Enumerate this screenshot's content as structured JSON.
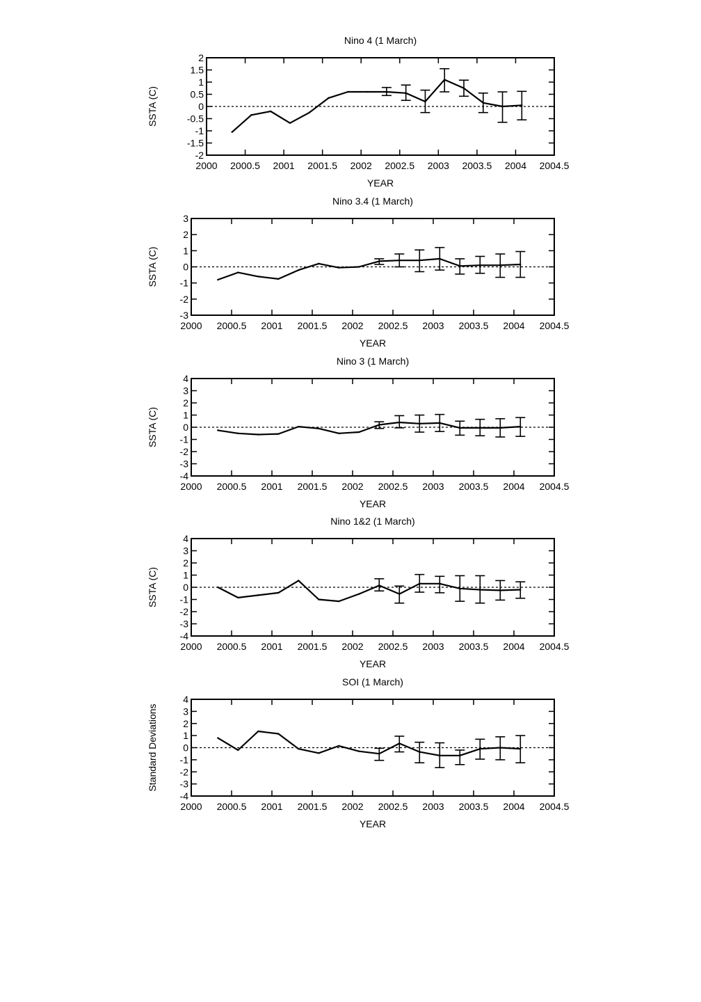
{
  "chart_data": [
    {
      "type": "line",
      "title": "Nino 4 (1 March)",
      "xlabel": "YEAR",
      "ylabel": "SSTA (C)",
      "xlim": [
        2000,
        2004.5
      ],
      "ylim": [
        -2,
        2
      ],
      "xticks": [
        "2000",
        "2000.5",
        "2001",
        "2001.5",
        "2002",
        "2002.5",
        "2003",
        "2003.5",
        "2004",
        "2004.5"
      ],
      "yticks": [
        "2",
        "1.5",
        "1",
        "0.5",
        "0",
        "-0.5",
        "-1",
        "-1.5",
        "-2"
      ],
      "grid": false,
      "zero_line": "dotted",
      "x": [
        2000.33,
        2000.58,
        2000.83,
        2001.08,
        2001.33,
        2001.58,
        2001.83,
        2002.08,
        2002.33,
        2002.58,
        2002.83,
        2003.08,
        2003.33,
        2003.58,
        2003.83,
        2004.08
      ],
      "values": [
        -1.05,
        -0.35,
        -0.2,
        -0.68,
        -0.25,
        0.35,
        0.6,
        0.6,
        0.6,
        0.55,
        0.2,
        1.1,
        0.75,
        0.15,
        0.0,
        0.05
      ],
      "error_bars": [
        {
          "x": 2002.33,
          "low": 0.45,
          "high": 0.78
        },
        {
          "x": 2002.58,
          "low": 0.25,
          "high": 0.88
        },
        {
          "x": 2002.83,
          "low": -0.25,
          "high": 0.67
        },
        {
          "x": 2003.08,
          "low": 0.6,
          "high": 1.55
        },
        {
          "x": 2003.33,
          "low": 0.42,
          "high": 1.08
        },
        {
          "x": 2003.58,
          "low": -0.25,
          "high": 0.55
        },
        {
          "x": 2003.83,
          "low": -0.65,
          "high": 0.6
        },
        {
          "x": 2004.08,
          "low": -0.55,
          "high": 0.62
        }
      ]
    },
    {
      "type": "line",
      "title": "Nino 3.4 (1 March)",
      "xlabel": "YEAR",
      "ylabel": "SSTA (C)",
      "xlim": [
        2000,
        2004.5
      ],
      "ylim": [
        -3,
        3
      ],
      "xticks": [
        "2000",
        "2000.5",
        "2001",
        "2001.5",
        "2002",
        "2002.5",
        "2003",
        "2003.5",
        "2004",
        "2004.5"
      ],
      "yticks": [
        "3",
        "2",
        "1",
        "0",
        "-1",
        "-2",
        "-3"
      ],
      "grid": false,
      "zero_line": "dotted",
      "x": [
        2000.33,
        2000.58,
        2000.83,
        2001.08,
        2001.33,
        2001.58,
        2001.83,
        2002.08,
        2002.33,
        2002.58,
        2002.83,
        2003.08,
        2003.33,
        2003.58,
        2003.83,
        2004.08
      ],
      "values": [
        -0.8,
        -0.35,
        -0.6,
        -0.75,
        -0.2,
        0.2,
        -0.05,
        0.0,
        0.35,
        0.4,
        0.4,
        0.5,
        0.05,
        0.1,
        0.1,
        0.15
      ],
      "error_bars": [
        {
          "x": 2002.33,
          "low": 0.15,
          "high": 0.5
        },
        {
          "x": 2002.58,
          "low": 0.0,
          "high": 0.8
        },
        {
          "x": 2002.83,
          "low": -0.3,
          "high": 1.05
        },
        {
          "x": 2003.08,
          "low": -0.2,
          "high": 1.2
        },
        {
          "x": 2003.33,
          "low": -0.45,
          "high": 0.5
        },
        {
          "x": 2003.58,
          "low": -0.4,
          "high": 0.65
        },
        {
          "x": 2003.83,
          "low": -0.65,
          "high": 0.8
        },
        {
          "x": 2004.08,
          "low": -0.65,
          "high": 0.95
        }
      ]
    },
    {
      "type": "line",
      "title": "Nino 3 (1 March)",
      "xlabel": "YEAR",
      "ylabel": "SSTA (C)",
      "xlim": [
        2000,
        2004.5
      ],
      "ylim": [
        -4,
        4
      ],
      "xticks": [
        "2000",
        "2000.5",
        "2001",
        "2001.5",
        "2002",
        "2002.5",
        "2003",
        "2003.5",
        "2004",
        "2004.5"
      ],
      "yticks": [
        "4",
        "3",
        "2",
        "1",
        "0",
        "-1",
        "-2",
        "-3",
        "-4"
      ],
      "grid": false,
      "zero_line": "dotted",
      "x": [
        2000.33,
        2000.58,
        2000.83,
        2001.08,
        2001.33,
        2001.58,
        2001.83,
        2002.08,
        2002.33,
        2002.58,
        2002.83,
        2003.08,
        2003.33,
        2003.58,
        2003.83,
        2004.08
      ],
      "values": [
        -0.25,
        -0.5,
        -0.6,
        -0.55,
        0.05,
        -0.1,
        -0.5,
        -0.4,
        0.2,
        0.4,
        0.3,
        0.35,
        -0.05,
        -0.05,
        -0.05,
        0.05
      ],
      "error_bars": [
        {
          "x": 2002.33,
          "low": -0.1,
          "high": 0.45
        },
        {
          "x": 2002.58,
          "low": -0.05,
          "high": 0.95
        },
        {
          "x": 2002.83,
          "low": -0.4,
          "high": 1.0
        },
        {
          "x": 2003.08,
          "low": -0.35,
          "high": 1.05
        },
        {
          "x": 2003.33,
          "low": -0.65,
          "high": 0.5
        },
        {
          "x": 2003.58,
          "low": -0.7,
          "high": 0.65
        },
        {
          "x": 2003.83,
          "low": -0.8,
          "high": 0.7
        },
        {
          "x": 2004.08,
          "low": -0.75,
          "high": 0.8
        }
      ]
    },
    {
      "type": "line",
      "title": "Nino 1&2 (1 March)",
      "xlabel": "YEAR",
      "ylabel": "SSTA (C)",
      "xlim": [
        2000,
        2004.5
      ],
      "ylim": [
        -4,
        4
      ],
      "xticks": [
        "2000",
        "2000.5",
        "2001",
        "2001.5",
        "2002",
        "2002.5",
        "2003",
        "2003.5",
        "2004",
        "2004.5"
      ],
      "yticks": [
        "4",
        "3",
        "2",
        "1",
        "0",
        "-1",
        "-2",
        "-3",
        "-4"
      ],
      "grid": false,
      "zero_line": "dotted",
      "x": [
        2000.33,
        2000.58,
        2000.83,
        2001.08,
        2001.33,
        2001.58,
        2001.83,
        2002.08,
        2002.33,
        2002.58,
        2002.83,
        2003.08,
        2003.33,
        2003.58,
        2003.83,
        2004.08
      ],
      "values": [
        0.0,
        -0.85,
        -0.65,
        -0.45,
        0.55,
        -1.0,
        -1.15,
        -0.55,
        0.15,
        -0.55,
        0.3,
        0.3,
        -0.1,
        -0.2,
        -0.25,
        -0.2
      ],
      "error_bars": [
        {
          "x": 2002.33,
          "low": -0.3,
          "high": 0.7
        },
        {
          "x": 2002.58,
          "low": -1.3,
          "high": 0.1
        },
        {
          "x": 2002.83,
          "low": -0.4,
          "high": 1.05
        },
        {
          "x": 2003.08,
          "low": -0.45,
          "high": 0.9
        },
        {
          "x": 2003.33,
          "low": -1.15,
          "high": 0.95
        },
        {
          "x": 2003.58,
          "low": -1.3,
          "high": 0.95
        },
        {
          "x": 2003.83,
          "low": -1.05,
          "high": 0.55
        },
        {
          "x": 2004.08,
          "low": -0.9,
          "high": 0.45
        }
      ]
    },
    {
      "type": "line",
      "title": "SOI (1 March)",
      "xlabel": "YEAR",
      "ylabel": "Standard Deviations",
      "xlim": [
        2000,
        2004.5
      ],
      "ylim": [
        -4,
        4
      ],
      "xticks": [
        "2000",
        "2000.5",
        "2001",
        "2001.5",
        "2002",
        "2002.5",
        "2003",
        "2003.5",
        "2004",
        "2004.5"
      ],
      "yticks": [
        "4",
        "3",
        "2",
        "1",
        "0",
        "-1",
        "-2",
        "-3",
        "-4"
      ],
      "grid": false,
      "zero_line": "dotted",
      "x": [
        2000.33,
        2000.58,
        2000.83,
        2001.08,
        2001.33,
        2001.58,
        2001.83,
        2002.08,
        2002.33,
        2002.58,
        2002.83,
        2003.08,
        2003.33,
        2003.58,
        2003.83,
        2004.08
      ],
      "values": [
        0.8,
        -0.2,
        1.35,
        1.15,
        -0.1,
        -0.45,
        0.15,
        -0.3,
        -0.5,
        0.35,
        -0.35,
        -0.65,
        -0.65,
        -0.1,
        0.0,
        -0.1
      ],
      "error_bars": [
        {
          "x": 2002.33,
          "low": -1.05,
          "high": -0.05
        },
        {
          "x": 2002.58,
          "low": -0.35,
          "high": 0.95
        },
        {
          "x": 2002.83,
          "low": -1.25,
          "high": 0.45
        },
        {
          "x": 2003.08,
          "low": -1.65,
          "high": 0.4
        },
        {
          "x": 2003.33,
          "low": -1.4,
          "high": -0.2
        },
        {
          "x": 2003.58,
          "low": -0.95,
          "high": 0.7
        },
        {
          "x": 2003.83,
          "low": -1.0,
          "high": 0.9
        },
        {
          "x": 2004.08,
          "low": -1.25,
          "high": 1.0
        }
      ]
    }
  ]
}
